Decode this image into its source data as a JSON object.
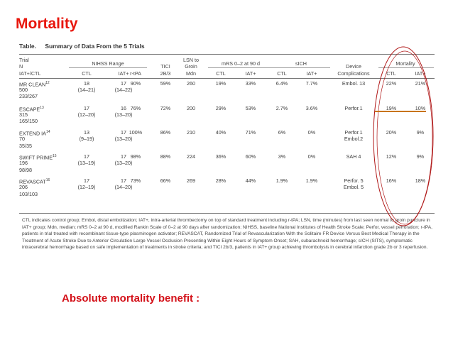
{
  "slide_title": "Mortality",
  "table": {
    "label": "Table.",
    "caption": "Summary of Data From the 5 Trials",
    "head": {
      "trial": [
        "Trial",
        "N",
        "IAT+/CTL"
      ],
      "nihss": "NIHSS Range",
      "tici": [
        "TICI",
        "2B/3"
      ],
      "lsn": [
        "LSN to",
        "Groin",
        "Mdn"
      ],
      "mrs": "mRS 0–2 at 90 d",
      "sich": "sICH",
      "device": [
        "Device",
        "Complications"
      ],
      "mortality": "Mortality",
      "ctl": "CTL",
      "iat": "IAT+",
      "rtpa": "r-tPA",
      "tici_sub": "2B/3"
    },
    "rows": [
      {
        "trial": "MR CLEAN",
        "ref": "12",
        "n": "500",
        "split": "233/267",
        "nihss_ctl": "18",
        "nihss_ctl_r": "(14–21)",
        "nihss_iat": "17",
        "nihss_iat_r": "(14–22)",
        "rtpa": "90%",
        "tici": "59%",
        "lsn": "260",
        "mrs_ctl": "19%",
        "mrs_iat": "33%",
        "sich_ctl": "6.4%",
        "sich_iat": "7.7%",
        "device": [
          "Embol. 13"
        ],
        "mort_ctl": "22%",
        "mort_iat": "21%"
      },
      {
        "trial": "ESCAPE",
        "ref": "13",
        "n": "315",
        "split": "165/150",
        "nihss_ctl": "17",
        "nihss_ctl_r": "(12–20)",
        "nihss_iat": "16",
        "nihss_iat_r": "(13–20)",
        "rtpa": "76%",
        "tici": "72%",
        "lsn": "200",
        "mrs_ctl": "29%",
        "mrs_iat": "53%",
        "sich_ctl": "2.7%",
        "sich_iat": "3.6%",
        "device": [
          "Perfor.1"
        ],
        "mort_ctl": "19%",
        "mort_iat": "10%"
      },
      {
        "trial": "EXTEND IA",
        "ref": "14",
        "n": "70",
        "split": "35/35",
        "nihss_ctl": "13",
        "nihss_ctl_r": "(9–19)",
        "nihss_iat": "17",
        "nihss_iat_r": "(13–20)",
        "rtpa": "100%",
        "tici": "86%",
        "lsn": "210",
        "mrs_ctl": "40%",
        "mrs_iat": "71%",
        "sich_ctl": "6%",
        "sich_iat": "0%",
        "device": [
          "Perfor.1",
          "Embol.2"
        ],
        "mort_ctl": "20%",
        "mort_iat": "9%"
      },
      {
        "trial": "SWIFT PRIME",
        "ref": "15",
        "n": "196",
        "split": "98/98",
        "nihss_ctl": "17",
        "nihss_ctl_r": "(13–19)",
        "nihss_iat": "17",
        "nihss_iat_r": "(13–20)",
        "rtpa": "98%",
        "tici": "88%",
        "lsn": "224",
        "mrs_ctl": "36%",
        "mrs_iat": "60%",
        "sich_ctl": "3%",
        "sich_iat": "0%",
        "device": [
          "SAH 4"
        ],
        "mort_ctl": "12%",
        "mort_iat": "9%"
      },
      {
        "trial": "REVASCAT",
        "ref": "16",
        "n": "206",
        "split": "103/103",
        "nihss_ctl": "17",
        "nihss_ctl_r": "(12–19)",
        "nihss_iat": "17",
        "nihss_iat_r": "(14–20)",
        "rtpa": "73%",
        "tici": "66%",
        "lsn": "269",
        "mrs_ctl": "28%",
        "mrs_iat": "44%",
        "sich_ctl": "1.9%",
        "sich_iat": "1.9%",
        "device": [
          "Perfor. 5",
          "Embol. 5"
        ],
        "mort_ctl": "16%",
        "mort_iat": "18%"
      }
    ],
    "footnote": "CTL indicates control group; Embol, distal embolization; IAT+, intra-arterial thrombectomy on top of standard treatment including r-tPA; LSN, time (minutes) from last seen normal to groin puncture in IAT+ group; Mdn, median; mRS 0–2 at 90 d, modified Rankin Scale of 0–2 at 90 days after randomization; NIHSS, baseline National Institutes of Health Stroke Scale; Perfor, vessel perforation; r-tPA, patients in trial treated with recombinant tissue-type plasminogen activator; REVASCAT, Randomized Trial of Revascularization With the Solitaire FR Device Versus Best Medical Therapy in the Treatment of Acute Stroke Due to Anterior Circulation Large Vessel Occlusion Presenting Within Eight Hours of Symptom Onset; SAH, subarachnoid hemorrhage; sICH (SITS), symptomatic intracerebral hemorrhage based on safe implementation of treatments in stroke criteria; and TICI 2b/3, patients in IAT+ group achieving thrombolysis in cerebral infarction grade 2b or 3 reperfusion."
  },
  "benefit_label": "Absolute mortality benefit :",
  "colors": {
    "title": "#e8160c",
    "benefit": "#d4121a",
    "ellipse": "#b01818",
    "strike": "#c8741c"
  }
}
